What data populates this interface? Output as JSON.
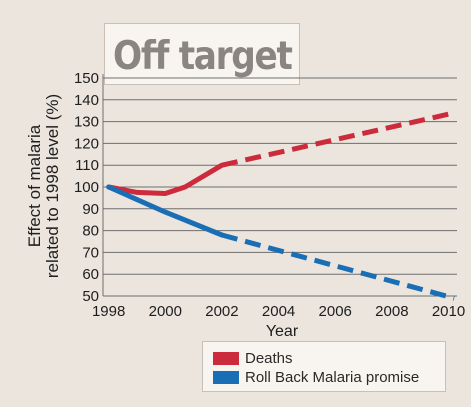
{
  "chart_data": {
    "type": "line",
    "title": "Off target",
    "xlabel": "Year",
    "ylabel_lines": [
      "Effect of malaria",
      "related to 1998 level (%)"
    ],
    "xlim": [
      1997.8,
      2010.3
    ],
    "ylim": [
      50,
      150
    ],
    "xticks": [
      "1998",
      "2000",
      "2002",
      "2004",
      "2006",
      "2008",
      "2010"
    ],
    "yticks": [
      "50",
      "60",
      "70",
      "80",
      "90",
      "100",
      "110",
      "120",
      "130",
      "140",
      "150"
    ],
    "grid": true,
    "legend_position": "bottom-right",
    "series": [
      {
        "name": "Deaths",
        "color": "#cc2b3c",
        "solid": {
          "x": [
            1998,
            1999,
            2000,
            2000.7,
            2002
          ],
          "y": [
            100,
            97.5,
            97,
            100,
            110
          ]
        },
        "dashed": {
          "x": [
            2002,
            2010.2
          ],
          "y": [
            110,
            134
          ]
        }
      },
      {
        "name": "Roll Back Malaria promise",
        "color": "#1a6eb5",
        "solid": {
          "x": [
            1998,
            2000,
            2002
          ],
          "y": [
            100,
            88.5,
            78
          ]
        },
        "dashed": {
          "x": [
            2002,
            2010.2
          ],
          "y": [
            78,
            49
          ]
        }
      }
    ]
  }
}
